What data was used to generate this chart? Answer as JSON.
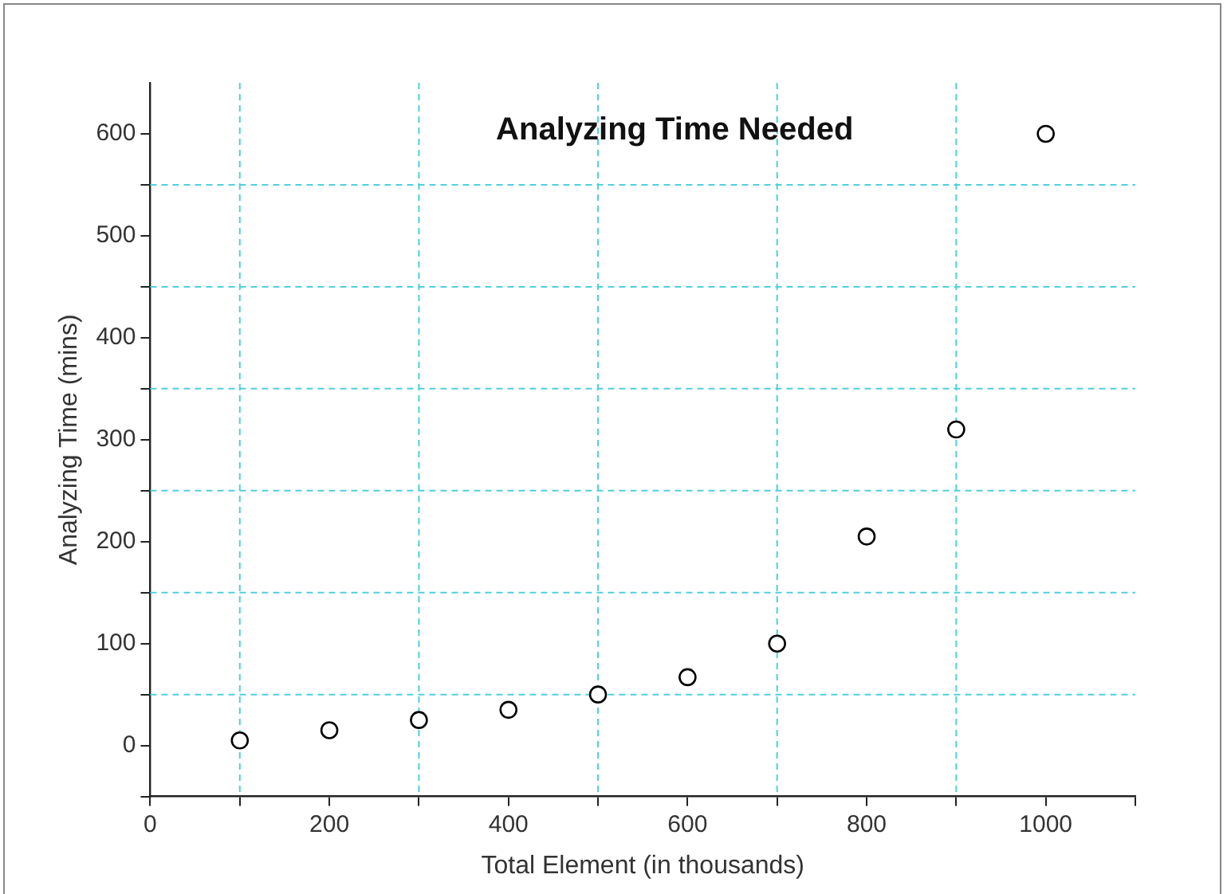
{
  "chart_data": {
    "type": "scatter",
    "title": "Analyzing Time Needed",
    "xlabel": "Total Element (in thousands)",
    "ylabel": "Analyzing Time (mins)",
    "x": [
      100,
      200,
      300,
      400,
      500,
      600,
      700,
      800,
      900,
      1000
    ],
    "series": [
      {
        "color": "#000000",
        "values": [
          5,
          15,
          25,
          35,
          50,
          67,
          100,
          205,
          310,
          600
        ]
      }
    ],
    "marker": "circle",
    "xlim": [
      0,
      1100
    ],
    "xticks": [
      0,
      {
        "value": 100,
        "label": null
      },
      200,
      {
        "value": 300,
        "label": null
      },
      400,
      {
        "value": 500,
        "label": null
      },
      600,
      {
        "value": 700,
        "label": null
      },
      800,
      {
        "value": 900,
        "label": null
      },
      1000,
      {
        "value": 1100,
        "label": null
      }
    ],
    "ylim": [
      -50,
      650
    ],
    "yticks": [
      {
        "value": -50,
        "label": null
      },
      0,
      {
        "value": 50,
        "label": null
      },
      100,
      {
        "value": 150,
        "label": null
      },
      200,
      {
        "value": 250,
        "label": null
      },
      300,
      {
        "value": 350,
        "label": null
      },
      400,
      {
        "value": 450,
        "label": null
      },
      500,
      {
        "value": 550,
        "label": null
      },
      600
    ],
    "grid": true,
    "legend": false
  }
}
